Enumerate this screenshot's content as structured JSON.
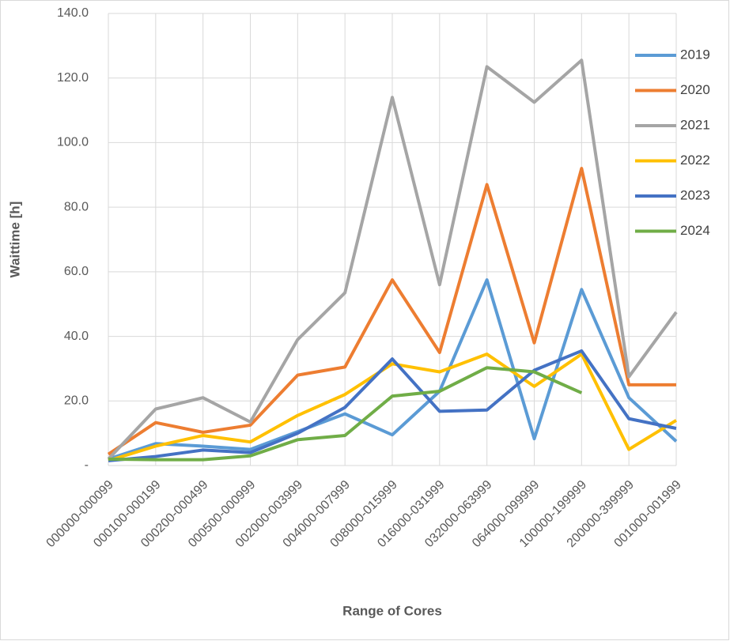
{
  "chart_data": {
    "type": "line",
    "x_label": "Range of Cores",
    "y_label": "Waittime [h]",
    "categories": [
      "000000-000099",
      "000100-000199",
      "000200-000499",
      "000500-000999",
      "002000-003999",
      "004000-007999",
      "008000-015999",
      "016000-031999",
      "032000-063999",
      "064000-099999",
      "100000-199999",
      "200000-399999",
      "001000-001999"
    ],
    "series": [
      {
        "name": "2019",
        "color": "#5b9bd5",
        "values": [
          2,
          6.8,
          6,
          5,
          10.5,
          16,
          9.5,
          23,
          57.5,
          8.3,
          54.5,
          21,
          7.5
        ]
      },
      {
        "name": "2020",
        "color": "#ed7d31",
        "values": [
          3.5,
          13.3,
          10.3,
          12.5,
          28,
          30.5,
          57.5,
          35,
          87,
          38,
          92,
          25,
          25
        ]
      },
      {
        "name": "2021",
        "color": "#a5a5a5",
        "values": [
          2,
          17.5,
          21,
          13.5,
          39,
          53.5,
          114,
          56,
          123.5,
          112.5,
          125.5,
          27.5,
          47.5
        ]
      },
      {
        "name": "2022",
        "color": "#ffc000",
        "values": [
          1.5,
          6,
          9.3,
          7.3,
          15.5,
          22,
          31.5,
          29,
          34.5,
          24.5,
          34.5,
          5,
          14
        ]
      },
      {
        "name": "2023",
        "color": "#4472c4",
        "values": [
          1.5,
          2.8,
          4.8,
          4,
          10,
          18,
          33,
          16.8,
          17.2,
          29.5,
          35.5,
          14.5,
          11.5
        ]
      },
      {
        "name": "2024",
        "color": "#70ad47",
        "values": [
          2,
          1.8,
          1.8,
          3,
          8,
          9.3,
          21.5,
          23,
          30.3,
          29,
          22.5,
          null,
          null
        ]
      }
    ],
    "ylim": [
      0,
      140
    ],
    "yticks": [
      {
        "value": 0,
        "label": "-"
      },
      {
        "value": 20,
        "label": "20.0"
      },
      {
        "value": 40,
        "label": "40.0"
      },
      {
        "value": 60,
        "label": "60.0"
      },
      {
        "value": 80,
        "label": "80.0"
      },
      {
        "value": 100,
        "label": "100.0"
      },
      {
        "value": 120,
        "label": "120.0"
      },
      {
        "value": 140,
        "label": "140.0"
      }
    ],
    "grid": true,
    "legend": "right"
  }
}
